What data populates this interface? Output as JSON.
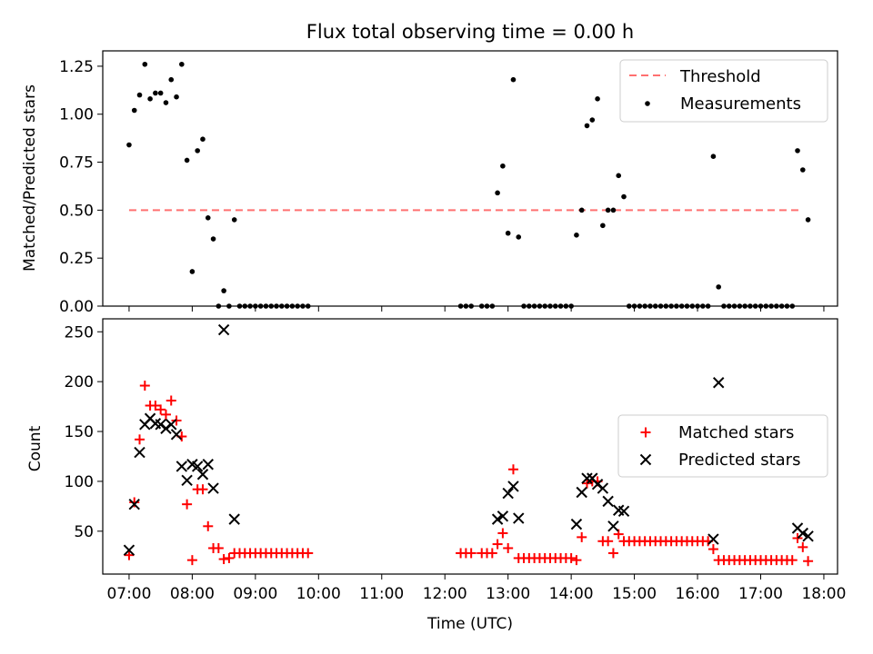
{
  "title": "Flux total observing time = 0.00 h",
  "chart_data": [
    {
      "type": "scatter",
      "ylabel": "Matched/Predicted stars",
      "xlabel": "",
      "ylim": [
        0,
        1.33
      ],
      "yticks": [
        0,
        0.25,
        0.5,
        0.75,
        1.0,
        1.25
      ],
      "ytick_labels": [
        "0.00",
        "0.25",
        "0.50",
        "0.75",
        "1.00",
        "1.25"
      ],
      "legend_position": "top-right",
      "threshold": {
        "name": "Threshold",
        "value": 0.5,
        "x_range": [
          "07:00",
          "17:40"
        ],
        "color": "#ff7070",
        "style": "dashed"
      },
      "series": [
        {
          "name": "Measurements",
          "color": "#000000",
          "marker": "dot",
          "points": [
            [
              "07:00",
              0.84
            ],
            [
              "07:05",
              1.02
            ],
            [
              "07:10",
              1.1
            ],
            [
              "07:15",
              1.26
            ],
            [
              "07:20",
              1.08
            ],
            [
              "07:25",
              1.11
            ],
            [
              "07:30",
              1.11
            ],
            [
              "07:35",
              1.06
            ],
            [
              "07:40",
              1.18
            ],
            [
              "07:45",
              1.09
            ],
            [
              "07:50",
              1.26
            ],
            [
              "07:55",
              0.76
            ],
            [
              "08:00",
              0.18
            ],
            [
              "08:05",
              0.81
            ],
            [
              "08:10",
              0.87
            ],
            [
              "08:15",
              0.46
            ],
            [
              "08:20",
              0.35
            ],
            [
              "08:25",
              0.0
            ],
            [
              "08:30",
              0.08
            ],
            [
              "08:35",
              0.0
            ],
            [
              "08:40",
              0.45
            ],
            [
              "08:45",
              0.0
            ],
            [
              "08:50",
              0.0
            ],
            [
              "08:55",
              0.0
            ],
            [
              "09:00",
              0.0
            ],
            [
              "09:05",
              0.0
            ],
            [
              "09:10",
              0.0
            ],
            [
              "09:15",
              0.0
            ],
            [
              "09:20",
              0.0
            ],
            [
              "09:25",
              0.0
            ],
            [
              "09:30",
              0.0
            ],
            [
              "09:35",
              0.0
            ],
            [
              "09:40",
              0.0
            ],
            [
              "09:45",
              0.0
            ],
            [
              "09:50",
              0.0
            ],
            [
              "12:15",
              0.0
            ],
            [
              "12:20",
              0.0
            ],
            [
              "12:25",
              0.0
            ],
            [
              "12:35",
              0.0
            ],
            [
              "12:40",
              0.0
            ],
            [
              "12:45",
              0.0
            ],
            [
              "12:50",
              0.59
            ],
            [
              "12:55",
              0.73
            ],
            [
              "13:00",
              0.38
            ],
            [
              "13:05",
              1.18
            ],
            [
              "13:10",
              0.36
            ],
            [
              "13:15",
              0.0
            ],
            [
              "13:20",
              0.0
            ],
            [
              "13:25",
              0.0
            ],
            [
              "13:30",
              0.0
            ],
            [
              "13:35",
              0.0
            ],
            [
              "13:40",
              0.0
            ],
            [
              "13:45",
              0.0
            ],
            [
              "13:50",
              0.0
            ],
            [
              "13:55",
              0.0
            ],
            [
              "14:00",
              0.0
            ],
            [
              "14:05",
              0.37
            ],
            [
              "14:10",
              0.5
            ],
            [
              "14:15",
              0.94
            ],
            [
              "14:20",
              0.97
            ],
            [
              "14:25",
              1.08
            ],
            [
              "14:30",
              0.42
            ],
            [
              "14:35",
              0.5
            ],
            [
              "14:40",
              0.5
            ],
            [
              "14:45",
              0.68
            ],
            [
              "14:50",
              0.57
            ],
            [
              "14:55",
              0.0
            ],
            [
              "15:00",
              0.0
            ],
            [
              "15:05",
              0.0
            ],
            [
              "15:10",
              0.0
            ],
            [
              "15:15",
              0.0
            ],
            [
              "15:20",
              0.0
            ],
            [
              "15:25",
              0.0
            ],
            [
              "15:30",
              0.0
            ],
            [
              "15:35",
              0.0
            ],
            [
              "15:40",
              0.0
            ],
            [
              "15:45",
              0.0
            ],
            [
              "15:50",
              0.0
            ],
            [
              "15:55",
              0.0
            ],
            [
              "16:00",
              0.0
            ],
            [
              "16:05",
              0.0
            ],
            [
              "16:10",
              0.0
            ],
            [
              "16:15",
              0.78
            ],
            [
              "16:20",
              0.1
            ],
            [
              "16:25",
              0.0
            ],
            [
              "16:30",
              0.0
            ],
            [
              "16:35",
              0.0
            ],
            [
              "16:40",
              0.0
            ],
            [
              "16:45",
              0.0
            ],
            [
              "16:50",
              0.0
            ],
            [
              "16:55",
              0.0
            ],
            [
              "17:00",
              0.0
            ],
            [
              "17:05",
              0.0
            ],
            [
              "17:10",
              0.0
            ],
            [
              "17:15",
              0.0
            ],
            [
              "17:20",
              0.0
            ],
            [
              "17:25",
              0.0
            ],
            [
              "17:30",
              0.0
            ],
            [
              "17:35",
              0.81
            ],
            [
              "17:40",
              0.71
            ],
            [
              "17:45",
              0.45
            ]
          ]
        }
      ]
    },
    {
      "type": "scatter",
      "ylabel": "Count",
      "xlabel": "Time (UTC)",
      "xlim": [
        "06:35",
        "18:13"
      ],
      "xticks": [
        "07:00",
        "08:00",
        "09:00",
        "10:00",
        "11:00",
        "12:00",
        "13:00",
        "14:00",
        "15:00",
        "16:00",
        "17:00",
        "18:00"
      ],
      "ylim": [
        7,
        263
      ],
      "yticks": [
        50,
        100,
        150,
        200,
        250
      ],
      "legend_position": "center-right",
      "series": [
        {
          "name": "Matched stars",
          "color": "#ff0000",
          "marker": "plus",
          "points": [
            [
              "07:00",
              26
            ],
            [
              "07:05",
              79
            ],
            [
              "07:10",
              142
            ],
            [
              "07:15",
              196
            ],
            [
              "07:20",
              176
            ],
            [
              "07:25",
              176
            ],
            [
              "07:30",
              172
            ],
            [
              "07:35",
              167
            ],
            [
              "07:40",
              181
            ],
            [
              "07:45",
              161
            ],
            [
              "07:50",
              145
            ],
            [
              "07:55",
              77
            ],
            [
              "08:00",
              21
            ],
            [
              "08:05",
              92
            ],
            [
              "08:10",
              92
            ],
            [
              "08:15",
              55
            ],
            [
              "08:20",
              33
            ],
            [
              "08:25",
              33
            ],
            [
              "08:30",
              22
            ],
            [
              "08:35",
              23
            ],
            [
              "08:40",
              28
            ],
            [
              "08:45",
              28
            ],
            [
              "08:50",
              28
            ],
            [
              "08:55",
              28
            ],
            [
              "09:00",
              28
            ],
            [
              "09:05",
              28
            ],
            [
              "09:10",
              28
            ],
            [
              "09:15",
              28
            ],
            [
              "09:20",
              28
            ],
            [
              "09:25",
              28
            ],
            [
              "09:30",
              28
            ],
            [
              "09:35",
              28
            ],
            [
              "09:40",
              28
            ],
            [
              "09:45",
              28
            ],
            [
              "09:50",
              28
            ],
            [
              "12:15",
              28
            ],
            [
              "12:20",
              28
            ],
            [
              "12:25",
              28
            ],
            [
              "12:35",
              28
            ],
            [
              "12:40",
              28
            ],
            [
              "12:45",
              28
            ],
            [
              "12:50",
              37
            ],
            [
              "12:55",
              48
            ],
            [
              "13:00",
              33
            ],
            [
              "13:05",
              112
            ],
            [
              "13:10",
              23
            ],
            [
              "13:15",
              23
            ],
            [
              "13:20",
              23
            ],
            [
              "13:25",
              23
            ],
            [
              "13:30",
              23
            ],
            [
              "13:35",
              23
            ],
            [
              "13:40",
              23
            ],
            [
              "13:45",
              23
            ],
            [
              "13:50",
              23
            ],
            [
              "13:55",
              23
            ],
            [
              "14:00",
              23
            ],
            [
              "14:05",
              21
            ],
            [
              "14:10",
              44
            ],
            [
              "14:15",
              98
            ],
            [
              "14:20",
              100
            ],
            [
              "14:25",
              100
            ],
            [
              "14:30",
              40
            ],
            [
              "14:35",
              40
            ],
            [
              "14:40",
              28
            ],
            [
              "14:45",
              47
            ],
            [
              "14:50",
              40
            ],
            [
              "14:55",
              40
            ],
            [
              "15:00",
              40
            ],
            [
              "15:05",
              40
            ],
            [
              "15:10",
              40
            ],
            [
              "15:15",
              40
            ],
            [
              "15:20",
              40
            ],
            [
              "15:25",
              40
            ],
            [
              "15:30",
              40
            ],
            [
              "15:35",
              40
            ],
            [
              "15:40",
              40
            ],
            [
              "15:45",
              40
            ],
            [
              "15:50",
              40
            ],
            [
              "15:55",
              40
            ],
            [
              "16:00",
              40
            ],
            [
              "16:05",
              40
            ],
            [
              "16:10",
              40
            ],
            [
              "16:15",
              32
            ],
            [
              "16:20",
              21
            ],
            [
              "16:25",
              21
            ],
            [
              "16:30",
              21
            ],
            [
              "16:35",
              21
            ],
            [
              "16:40",
              21
            ],
            [
              "16:45",
              21
            ],
            [
              "16:50",
              21
            ],
            [
              "16:55",
              21
            ],
            [
              "17:00",
              21
            ],
            [
              "17:05",
              21
            ],
            [
              "17:10",
              21
            ],
            [
              "17:15",
              21
            ],
            [
              "17:20",
              21
            ],
            [
              "17:25",
              21
            ],
            [
              "17:30",
              21
            ],
            [
              "17:35",
              43
            ],
            [
              "17:40",
              34
            ],
            [
              "17:45",
              20
            ]
          ]
        },
        {
          "name": "Predicted stars",
          "color": "#000000",
          "marker": "cross",
          "points": [
            [
              "07:00",
              31
            ],
            [
              "07:05",
              77
            ],
            [
              "07:10",
              129
            ],
            [
              "07:15",
              157
            ],
            [
              "07:20",
              163
            ],
            [
              "07:25",
              158
            ],
            [
              "07:30",
              157
            ],
            [
              "07:35",
              153
            ],
            [
              "07:40",
              157
            ],
            [
              "07:45",
              147
            ],
            [
              "07:50",
              115
            ],
            [
              "07:55",
              101
            ],
            [
              "08:00",
              117
            ],
            [
              "08:05",
              115
            ],
            [
              "08:10",
              107
            ],
            [
              "08:15",
              117
            ],
            [
              "08:20",
              93
            ],
            [
              "08:30",
              252
            ],
            [
              "08:40",
              62
            ],
            [
              "12:50",
              62
            ],
            [
              "12:55",
              65
            ],
            [
              "13:00",
              88
            ],
            [
              "13:05",
              95
            ],
            [
              "13:10",
              63
            ],
            [
              "14:05",
              57
            ],
            [
              "14:10",
              89
            ],
            [
              "14:15",
              103
            ],
            [
              "14:20",
              103
            ],
            [
              "14:25",
              97
            ],
            [
              "14:30",
              93
            ],
            [
              "14:35",
              80
            ],
            [
              "14:40",
              55
            ],
            [
              "14:45",
              71
            ],
            [
              "14:50",
              70
            ],
            [
              "16:15",
              42
            ],
            [
              "16:20",
              199
            ],
            [
              "17:35",
              53
            ],
            [
              "17:40",
              48
            ],
            [
              "17:45",
              45
            ]
          ]
        }
      ]
    }
  ]
}
